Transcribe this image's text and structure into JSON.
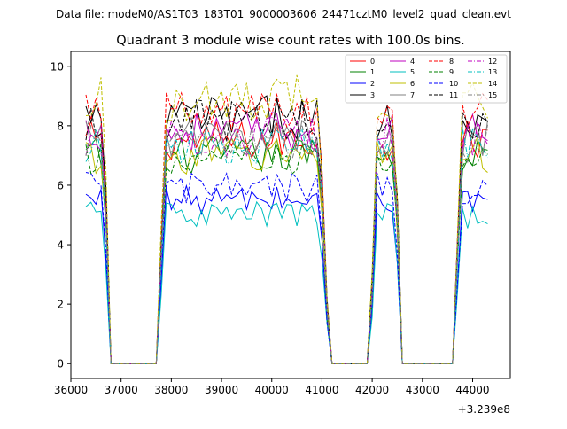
{
  "header": {
    "data_file": "Data file: modeM0/AS1T03_183T01_9000003606_24471cztM0_level2_quad_clean.evt"
  },
  "chart_data": {
    "type": "line",
    "title": "Quadrant 3 module wise count rates with 100.0s bins.",
    "xlabel": "",
    "ylabel": "",
    "x_offset_label": "+3.239e8",
    "xlim": [
      36000,
      44750
    ],
    "ylim": [
      -0.5,
      10.5
    ],
    "x_ticks": [
      36000,
      37000,
      38000,
      39000,
      40000,
      41000,
      42000,
      43000,
      44000
    ],
    "x_tick_labels": [
      "36000",
      "37000",
      "38000",
      "39000",
      "40000",
      "41000",
      "42000",
      "43000",
      "44000"
    ],
    "y_ticks": [
      0,
      2,
      4,
      6,
      8,
      10
    ],
    "y_tick_labels": [
      "0",
      "2",
      "4",
      "6",
      "8",
      "10"
    ],
    "grid": false,
    "legend_position": "top-right",
    "segments": [
      {
        "start": 36300,
        "end": 36800,
        "rise": 0,
        "fall": 150
      },
      {
        "start": 36950,
        "end": 37500,
        "gap": true
      },
      {
        "start": 37700,
        "end": 41150,
        "rise": 200,
        "fall": 200
      },
      {
        "start": 41450,
        "end": 41800,
        "gap": true
      },
      {
        "start": 41950,
        "end": 42600,
        "rise": 150,
        "fall": 150
      },
      {
        "start": 42800,
        "end": 43400,
        "gap": true
      },
      {
        "start": 43600,
        "end": 44350,
        "rise": 200,
        "fall": 0
      }
    ],
    "series": [
      {
        "name": "0",
        "color": "#ff0000",
        "dash": "solid",
        "level": 7.5
      },
      {
        "name": "1",
        "color": "#008000",
        "dash": "solid",
        "level": 7.0
      },
      {
        "name": "2",
        "color": "#0000ff",
        "dash": "solid",
        "level": 5.5
      },
      {
        "name": "3",
        "color": "#000000",
        "dash": "solid",
        "level": 8.3
      },
      {
        "name": "4",
        "color": "#bf00bf",
        "dash": "solid",
        "level": 7.8
      },
      {
        "name": "5",
        "color": "#00bfbf",
        "dash": "solid",
        "level": 5.0
      },
      {
        "name": "6",
        "color": "#bfbf00",
        "dash": "solid",
        "level": 7.0
      },
      {
        "name": "7",
        "color": "#808080",
        "dash": "solid",
        "level": 7.6
      },
      {
        "name": "8",
        "color": "#ff0000",
        "dash": "dashed",
        "level": 8.4
      },
      {
        "name": "9",
        "color": "#008000",
        "dash": "dashed",
        "level": 6.8
      },
      {
        "name": "10",
        "color": "#0000ff",
        "dash": "dashed",
        "level": 5.9
      },
      {
        "name": "11",
        "color": "#000000",
        "dash": "dashed",
        "level": 8.2
      },
      {
        "name": "12",
        "color": "#bf00bf",
        "dash": "dashdot",
        "level": 7.6
      },
      {
        "name": "13",
        "color": "#00bfbf",
        "dash": "dashdot",
        "level": 7.3
      },
      {
        "name": "14",
        "color": "#bfbf00",
        "dash": "dashed",
        "level": 8.9
      },
      {
        "name": "15",
        "color": "#808080",
        "dash": "dashdot",
        "level": 7.4
      }
    ]
  }
}
